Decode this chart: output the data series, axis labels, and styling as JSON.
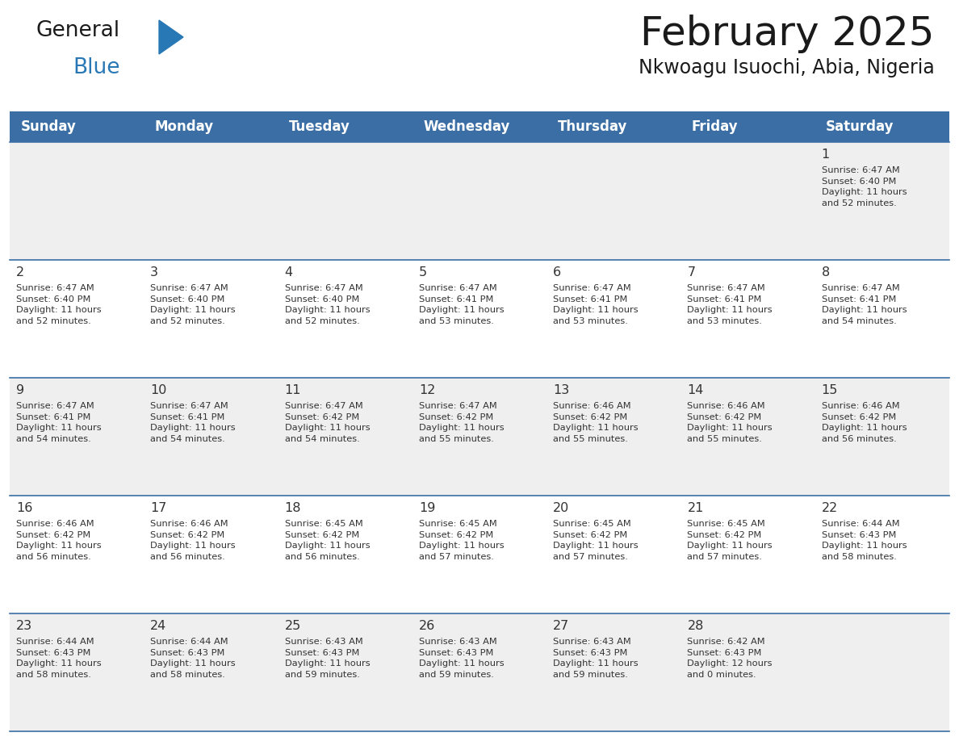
{
  "title": "February 2025",
  "subtitle": "Nkwoagu Isuochi, Abia, Nigeria",
  "days_of_week": [
    "Sunday",
    "Monday",
    "Tuesday",
    "Wednesday",
    "Thursday",
    "Friday",
    "Saturday"
  ],
  "header_bg": "#3A6EA5",
  "header_text": "#FFFFFF",
  "cell_bg_odd": "#EFEFEF",
  "cell_bg_even": "#FFFFFF",
  "cell_border": "#3A6EA5",
  "day_num_color": "#333333",
  "info_text_color": "#333333",
  "title_color": "#1a1a1a",
  "subtitle_color": "#1a1a1a",
  "logo_general_color": "#1a1a1a",
  "logo_blue_color": "#2878B5",
  "logo_triangle_color": "#2878B5",
  "calendar_data": [
    [
      {
        "day": null,
        "info": ""
      },
      {
        "day": null,
        "info": ""
      },
      {
        "day": null,
        "info": ""
      },
      {
        "day": null,
        "info": ""
      },
      {
        "day": null,
        "info": ""
      },
      {
        "day": null,
        "info": ""
      },
      {
        "day": 1,
        "info": "Sunrise: 6:47 AM\nSunset: 6:40 PM\nDaylight: 11 hours\nand 52 minutes."
      }
    ],
    [
      {
        "day": 2,
        "info": "Sunrise: 6:47 AM\nSunset: 6:40 PM\nDaylight: 11 hours\nand 52 minutes."
      },
      {
        "day": 3,
        "info": "Sunrise: 6:47 AM\nSunset: 6:40 PM\nDaylight: 11 hours\nand 52 minutes."
      },
      {
        "day": 4,
        "info": "Sunrise: 6:47 AM\nSunset: 6:40 PM\nDaylight: 11 hours\nand 52 minutes."
      },
      {
        "day": 5,
        "info": "Sunrise: 6:47 AM\nSunset: 6:41 PM\nDaylight: 11 hours\nand 53 minutes."
      },
      {
        "day": 6,
        "info": "Sunrise: 6:47 AM\nSunset: 6:41 PM\nDaylight: 11 hours\nand 53 minutes."
      },
      {
        "day": 7,
        "info": "Sunrise: 6:47 AM\nSunset: 6:41 PM\nDaylight: 11 hours\nand 53 minutes."
      },
      {
        "day": 8,
        "info": "Sunrise: 6:47 AM\nSunset: 6:41 PM\nDaylight: 11 hours\nand 54 minutes."
      }
    ],
    [
      {
        "day": 9,
        "info": "Sunrise: 6:47 AM\nSunset: 6:41 PM\nDaylight: 11 hours\nand 54 minutes."
      },
      {
        "day": 10,
        "info": "Sunrise: 6:47 AM\nSunset: 6:41 PM\nDaylight: 11 hours\nand 54 minutes."
      },
      {
        "day": 11,
        "info": "Sunrise: 6:47 AM\nSunset: 6:42 PM\nDaylight: 11 hours\nand 54 minutes."
      },
      {
        "day": 12,
        "info": "Sunrise: 6:47 AM\nSunset: 6:42 PM\nDaylight: 11 hours\nand 55 minutes."
      },
      {
        "day": 13,
        "info": "Sunrise: 6:46 AM\nSunset: 6:42 PM\nDaylight: 11 hours\nand 55 minutes."
      },
      {
        "day": 14,
        "info": "Sunrise: 6:46 AM\nSunset: 6:42 PM\nDaylight: 11 hours\nand 55 minutes."
      },
      {
        "day": 15,
        "info": "Sunrise: 6:46 AM\nSunset: 6:42 PM\nDaylight: 11 hours\nand 56 minutes."
      }
    ],
    [
      {
        "day": 16,
        "info": "Sunrise: 6:46 AM\nSunset: 6:42 PM\nDaylight: 11 hours\nand 56 minutes."
      },
      {
        "day": 17,
        "info": "Sunrise: 6:46 AM\nSunset: 6:42 PM\nDaylight: 11 hours\nand 56 minutes."
      },
      {
        "day": 18,
        "info": "Sunrise: 6:45 AM\nSunset: 6:42 PM\nDaylight: 11 hours\nand 56 minutes."
      },
      {
        "day": 19,
        "info": "Sunrise: 6:45 AM\nSunset: 6:42 PM\nDaylight: 11 hours\nand 57 minutes."
      },
      {
        "day": 20,
        "info": "Sunrise: 6:45 AM\nSunset: 6:42 PM\nDaylight: 11 hours\nand 57 minutes."
      },
      {
        "day": 21,
        "info": "Sunrise: 6:45 AM\nSunset: 6:42 PM\nDaylight: 11 hours\nand 57 minutes."
      },
      {
        "day": 22,
        "info": "Sunrise: 6:44 AM\nSunset: 6:43 PM\nDaylight: 11 hours\nand 58 minutes."
      }
    ],
    [
      {
        "day": 23,
        "info": "Sunrise: 6:44 AM\nSunset: 6:43 PM\nDaylight: 11 hours\nand 58 minutes."
      },
      {
        "day": 24,
        "info": "Sunrise: 6:44 AM\nSunset: 6:43 PM\nDaylight: 11 hours\nand 58 minutes."
      },
      {
        "day": 25,
        "info": "Sunrise: 6:43 AM\nSunset: 6:43 PM\nDaylight: 11 hours\nand 59 minutes."
      },
      {
        "day": 26,
        "info": "Sunrise: 6:43 AM\nSunset: 6:43 PM\nDaylight: 11 hours\nand 59 minutes."
      },
      {
        "day": 27,
        "info": "Sunrise: 6:43 AM\nSunset: 6:43 PM\nDaylight: 11 hours\nand 59 minutes."
      },
      {
        "day": 28,
        "info": "Sunrise: 6:42 AM\nSunset: 6:43 PM\nDaylight: 12 hours\nand 0 minutes."
      },
      {
        "day": null,
        "info": ""
      }
    ]
  ],
  "figsize": [
    11.88,
    9.18
  ],
  "dpi": 100
}
